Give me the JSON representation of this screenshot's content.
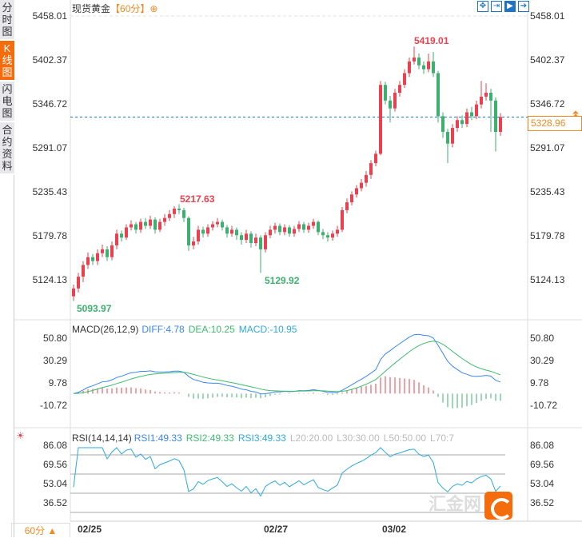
{
  "tabs": [
    {
      "label": "分时图",
      "active": false
    },
    {
      "label": "K线图",
      "active": true
    },
    {
      "label": "闪电图",
      "active": false
    },
    {
      "label": "合约资料",
      "active": false
    }
  ],
  "header": {
    "title": "现货黄金",
    "period": "【60分】",
    "add_icon": "plus-circle-icon"
  },
  "toolbar": [
    {
      "icon": "crosshair-icon",
      "on": false
    },
    {
      "icon": "zoom-range-icon",
      "on": false
    },
    {
      "icon": "zoom-in-icon",
      "on": true
    },
    {
      "icon": "scroll-right-icon",
      "on": false
    }
  ],
  "price_axis": [
    "5458.01",
    "5402.37",
    "5346.72",
    "5291.07",
    "5235.43",
    "5179.78",
    "5124.13"
  ],
  "last_price": "5328.96",
  "annotations": {
    "high": "5419.01",
    "high2": "5217.63",
    "low": "5093.97",
    "low2": "5129.92"
  },
  "macd": {
    "label": "MACD(26,12,9)",
    "diff": "DIFF:4.78",
    "dea": "DEA:10.25",
    "macd": "MACD:-10.95",
    "axis": [
      "50.80",
      "30.29",
      "9.78",
      "-10.72"
    ]
  },
  "rsi": {
    "label": "RSI(14,14,14)",
    "rsi1": "RSI1:49.33",
    "rsi2": "RSI2:49.33",
    "rsi3": "RSI3:49.33",
    "l20": "L20:20.00",
    "l30": "L30:30.00",
    "l50": "L50:50.00",
    "l70": "L70:7",
    "axis": [
      "86.08",
      "69.56",
      "53.04",
      "36.52"
    ]
  },
  "period_selector": "60分 ▲",
  "dates": [
    "02/25",
    "02/27",
    "03/02"
  ],
  "watermark": "汇金网",
  "colors": {
    "up": "#e8414f",
    "down": "#3daf6e",
    "accent": "#f46c0c",
    "diff": "#3b86f0",
    "dea": "#3dbb6e",
    "rsi": "#2fa8e0"
  },
  "chart_data": {
    "type": "candlestick",
    "ylim": [
      5124.13,
      5458.01
    ],
    "ohlc": [
      [
        5100,
        5115,
        5093.97,
        5110
      ],
      [
        5110,
        5130,
        5105,
        5125
      ],
      [
        5125,
        5145,
        5118,
        5140
      ],
      [
        5140,
        5156,
        5135,
        5150
      ],
      [
        5150,
        5154,
        5140,
        5145
      ],
      [
        5145,
        5160,
        5140,
        5155
      ],
      [
        5155,
        5166,
        5150,
        5160
      ],
      [
        5160,
        5164,
        5145,
        5150
      ],
      [
        5150,
        5170,
        5146,
        5165
      ],
      [
        5165,
        5185,
        5160,
        5180
      ],
      [
        5180,
        5184,
        5170,
        5175
      ],
      [
        5175,
        5192,
        5172,
        5188
      ],
      [
        5188,
        5197,
        5184,
        5192
      ],
      [
        5192,
        5195,
        5180,
        5185
      ],
      [
        5185,
        5199,
        5181,
        5195
      ],
      [
        5195,
        5200,
        5186,
        5190
      ],
      [
        5190,
        5203,
        5186,
        5198
      ],
      [
        5198,
        5201,
        5180,
        5185
      ],
      [
        5185,
        5199,
        5182,
        5195
      ],
      [
        5195,
        5205,
        5190,
        5200
      ],
      [
        5200,
        5210,
        5196,
        5205
      ],
      [
        5205,
        5215,
        5200,
        5212
      ],
      [
        5212,
        5217.63,
        5205,
        5210
      ],
      [
        5210,
        5213,
        5195,
        5200
      ],
      [
        5200,
        5202,
        5158,
        5165
      ],
      [
        5165,
        5176,
        5160,
        5170
      ],
      [
        5170,
        5190,
        5166,
        5185
      ],
      [
        5185,
        5189,
        5175,
        5180
      ],
      [
        5180,
        5192,
        5176,
        5188
      ],
      [
        5188,
        5196,
        5184,
        5192
      ],
      [
        5192,
        5200,
        5188,
        5195
      ],
      [
        5195,
        5198,
        5184,
        5188
      ],
      [
        5188,
        5191,
        5175,
        5180
      ],
      [
        5180,
        5190,
        5176,
        5185
      ],
      [
        5185,
        5188,
        5172,
        5178
      ],
      [
        5178,
        5182,
        5166,
        5172
      ],
      [
        5172,
        5185,
        5168,
        5180
      ],
      [
        5180,
        5183,
        5162,
        5168
      ],
      [
        5168,
        5180,
        5164,
        5175
      ],
      [
        5175,
        5178,
        5129.92,
        5160
      ],
      [
        5160,
        5182,
        5156,
        5178
      ],
      [
        5178,
        5190,
        5174,
        5185
      ],
      [
        5185,
        5194,
        5180,
        5190
      ],
      [
        5190,
        5193,
        5178,
        5182
      ],
      [
        5182,
        5192,
        5178,
        5188
      ],
      [
        5188,
        5191,
        5176,
        5180
      ],
      [
        5180,
        5190,
        5176,
        5186
      ],
      [
        5186,
        5196,
        5182,
        5192
      ],
      [
        5192,
        5195,
        5181,
        5185
      ],
      [
        5185,
        5194,
        5181,
        5190
      ],
      [
        5190,
        5199,
        5186,
        5195
      ],
      [
        5195,
        5197,
        5178,
        5182
      ],
      [
        5182,
        5186,
        5173,
        5178
      ],
      [
        5178,
        5182,
        5170,
        5175
      ],
      [
        5175,
        5184,
        5171,
        5180
      ],
      [
        5180,
        5190,
        5176,
        5185
      ],
      [
        5185,
        5214,
        5182,
        5210
      ],
      [
        5210,
        5225,
        5206,
        5220
      ],
      [
        5220,
        5234,
        5216,
        5230
      ],
      [
        5230,
        5242,
        5226,
        5238
      ],
      [
        5238,
        5250,
        5234,
        5245
      ],
      [
        5245,
        5260,
        5240,
        5255
      ],
      [
        5255,
        5274,
        5250,
        5270
      ],
      [
        5270,
        5286,
        5266,
        5282
      ],
      [
        5282,
        5375,
        5280,
        5370
      ],
      [
        5370,
        5374,
        5345,
        5350
      ],
      [
        5350,
        5356,
        5322,
        5340
      ],
      [
        5340,
        5365,
        5336,
        5360
      ],
      [
        5360,
        5375,
        5355,
        5370
      ],
      [
        5370,
        5390,
        5366,
        5385
      ],
      [
        5385,
        5405,
        5380,
        5400
      ],
      [
        5400,
        5419.01,
        5396,
        5405
      ],
      [
        5405,
        5410,
        5390,
        5395
      ],
      [
        5395,
        5400,
        5384,
        5390
      ],
      [
        5390,
        5410,
        5386,
        5400
      ],
      [
        5400,
        5412,
        5380,
        5385
      ],
      [
        5385,
        5388,
        5322,
        5330
      ],
      [
        5330,
        5335,
        5302,
        5310
      ],
      [
        5310,
        5314,
        5270,
        5295
      ],
      [
        5295,
        5320,
        5290,
        5315
      ],
      [
        5315,
        5330,
        5310,
        5325
      ],
      [
        5325,
        5331,
        5315,
        5320
      ],
      [
        5320,
        5340,
        5316,
        5335
      ],
      [
        5335,
        5342,
        5325,
        5330
      ],
      [
        5330,
        5350,
        5326,
        5345
      ],
      [
        5345,
        5375,
        5340,
        5355
      ],
      [
        5355,
        5372,
        5350,
        5360
      ],
      [
        5360,
        5365,
        5310,
        5350
      ],
      [
        5350,
        5354,
        5285,
        5310
      ],
      [
        5310,
        5334,
        5305,
        5328.96
      ]
    ]
  }
}
